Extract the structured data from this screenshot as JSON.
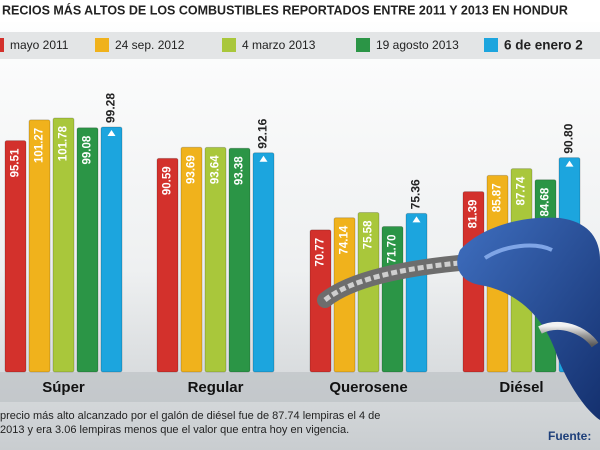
{
  "chart_data": {
    "type": "bar",
    "title": "RECIOS MÁS ALTOS  DE  LOS COMBUSTIBLES REPORTADOS ENTRE 2011 Y 2013 EN HONDUR",
    "categories": [
      "Súper",
      "Regular",
      "Querosene",
      "Diésel"
    ],
    "series": [
      {
        "name": "mayo 2011",
        "color": "#d3312c",
        "values": [
          95.51,
          90.59,
          70.77,
          81.39
        ],
        "value_labels": [
          "95.51",
          "90.59",
          "70.77",
          "81.39"
        ]
      },
      {
        "name": "24 sep. 2012",
        "color": "#f0b21c",
        "values": [
          101.27,
          93.69,
          74.14,
          85.87
        ],
        "value_labels": [
          "101.27",
          "93.69",
          "74.14",
          "85.87"
        ]
      },
      {
        "name": "4 marzo 2013",
        "color": "#a9c73b",
        "values": [
          101.78,
          93.64,
          75.58,
          87.74
        ],
        "value_labels": [
          "101.78",
          "93.64",
          "75.58",
          "87.74"
        ]
      },
      {
        "name": "19 agosto 2013",
        "color": "#2b9546",
        "values": [
          99.08,
          93.38,
          71.7,
          84.68
        ],
        "value_labels": [
          "99.08",
          "93.38",
          "71.70",
          "84.68"
        ]
      },
      {
        "name": "6 de enero 2",
        "color": "#1ca5de",
        "values": [
          99.28,
          92.16,
          75.36,
          90.8
        ],
        "value_labels": [
          "99.28",
          "92.16",
          "75.36",
          "90.80"
        ]
      }
    ],
    "footnote": [
      "precio más alto alcanzado por el galón de diésel fue de 87.74 lempiras el 4 de",
      "2013 y era 3.06 lempiras menos que el valor que entra hoy en vigencia."
    ],
    "source": "Fuente:"
  }
}
